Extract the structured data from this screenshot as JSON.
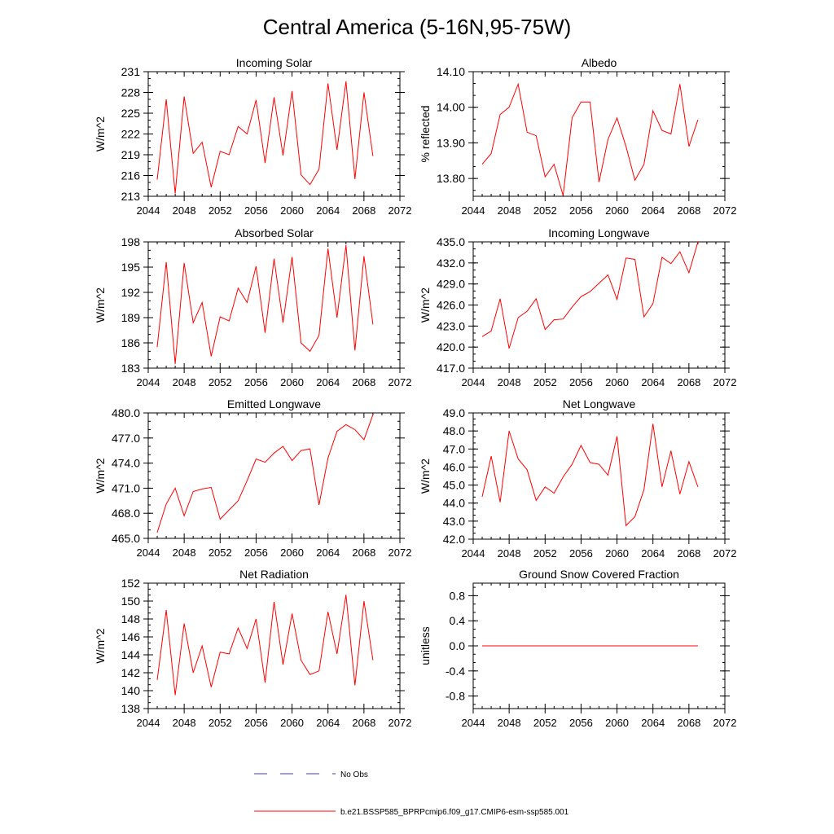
{
  "figure_title": "Central America (5-16N,95-75W)",
  "legend": {
    "obs_label": "No Obs",
    "model_label": "b.e21.BSSP585_BPRPcmip6.f09_g17.CMIP6-esm-ssp585.001",
    "obs_color": "#3b3bd0",
    "model_color": "#ff0000"
  },
  "chart_data": [
    {
      "type": "line",
      "title": "Incoming Solar",
      "ylabel": "W/m^2",
      "xlim": [
        2044,
        2072
      ],
      "ylim": [
        213,
        231
      ],
      "xticks": [
        "2044",
        "2048",
        "2052",
        "2056",
        "2060",
        "2064",
        "2068",
        "2072"
      ],
      "yticks": [
        "213",
        "216",
        "219",
        "222",
        "225",
        "228",
        "231"
      ],
      "series": [
        {
          "x": [
            2045,
            2046,
            2047,
            2048,
            2049,
            2050,
            2051,
            2052,
            2053,
            2054,
            2055,
            2056,
            2057,
            2058,
            2059,
            2060,
            2061,
            2062,
            2063,
            2064,
            2065,
            2066,
            2067,
            2068,
            2069
          ],
          "y": [
            215.4,
            227.0,
            213.4,
            227.4,
            219.2,
            220.8,
            214.3,
            219.5,
            219.0,
            223.1,
            222.0,
            226.9,
            217.8,
            227.3,
            218.9,
            228.2,
            216.1,
            214.7,
            216.9,
            229.3,
            219.7,
            229.6,
            215.5,
            228.0,
            218.8
          ]
        }
      ]
    },
    {
      "type": "line",
      "title": "Albedo",
      "ylabel": "% reflected",
      "xlim": [
        2044,
        2072
      ],
      "ylim": [
        13.75,
        14.1
      ],
      "xticks": [
        "2044",
        "2048",
        "2052",
        "2056",
        "2060",
        "2064",
        "2068",
        "2072"
      ],
      "yticks": [
        "13.80",
        "13.90",
        "14.00",
        "14.10"
      ],
      "series": [
        {
          "x": [
            2045,
            2046,
            2047,
            2048,
            2049,
            2050,
            2051,
            2052,
            2053,
            2054,
            2055,
            2056,
            2057,
            2058,
            2059,
            2060,
            2061,
            2062,
            2063,
            2064,
            2065,
            2066,
            2067,
            2068,
            2069
          ],
          "y": [
            13.84,
            13.87,
            13.98,
            14.0,
            14.065,
            13.93,
            13.92,
            13.805,
            13.84,
            13.752,
            13.97,
            14.015,
            14.015,
            13.79,
            13.91,
            13.97,
            13.89,
            13.795,
            13.84,
            13.99,
            13.935,
            13.925,
            14.065,
            13.89,
            13.965
          ]
        }
      ]
    },
    {
      "type": "line",
      "title": "Absorbed Solar",
      "ylabel": "W/m^2",
      "xlim": [
        2044,
        2072
      ],
      "ylim": [
        183,
        198
      ],
      "xticks": [
        "2044",
        "2048",
        "2052",
        "2056",
        "2060",
        "2064",
        "2068",
        "2072"
      ],
      "yticks": [
        "183",
        "186",
        "189",
        "192",
        "195",
        "198"
      ],
      "series": [
        {
          "x": [
            2045,
            2046,
            2047,
            2048,
            2049,
            2050,
            2051,
            2052,
            2053,
            2054,
            2055,
            2056,
            2057,
            2058,
            2059,
            2060,
            2061,
            2062,
            2063,
            2064,
            2065,
            2066,
            2067,
            2068,
            2069
          ],
          "y": [
            185.5,
            195.6,
            183.5,
            195.5,
            188.4,
            190.8,
            184.4,
            189.1,
            188.6,
            192.5,
            190.8,
            195.1,
            187.2,
            196.0,
            188.4,
            196.2,
            186.0,
            185.0,
            186.9,
            197.2,
            189.0,
            197.6,
            185.1,
            196.3,
            188.2
          ]
        }
      ]
    },
    {
      "type": "line",
      "title": "Incoming Longwave",
      "ylabel": "W/m^2",
      "xlim": [
        2044,
        2072
      ],
      "ylim": [
        417,
        435
      ],
      "xticks": [
        "2044",
        "2048",
        "2052",
        "2056",
        "2060",
        "2064",
        "2068",
        "2072"
      ],
      "yticks": [
        "417.0",
        "420.0",
        "423.0",
        "426.0",
        "429.0",
        "432.0",
        "435.0"
      ],
      "series": [
        {
          "x": [
            2045,
            2046,
            2047,
            2048,
            2049,
            2050,
            2051,
            2052,
            2053,
            2054,
            2055,
            2056,
            2057,
            2058,
            2059,
            2060,
            2061,
            2062,
            2063,
            2064,
            2065,
            2066,
            2067,
            2068,
            2069
          ],
          "y": [
            421.5,
            422.3,
            426.9,
            419.8,
            424.2,
            425.1,
            426.9,
            422.5,
            423.9,
            424.0,
            425.7,
            427.2,
            427.9,
            429.1,
            430.3,
            426.8,
            432.7,
            432.5,
            424.3,
            426.2,
            432.8,
            431.9,
            433.6,
            430.6,
            435.0
          ]
        }
      ]
    },
    {
      "type": "line",
      "title": "Emitted Longwave",
      "ylabel": "W/m^2",
      "xlim": [
        2044,
        2072
      ],
      "ylim": [
        465,
        480
      ],
      "xticks": [
        "2044",
        "2048",
        "2052",
        "2056",
        "2060",
        "2064",
        "2068",
        "2072"
      ],
      "yticks": [
        "465.0",
        "468.0",
        "471.0",
        "474.0",
        "477.0",
        "480.0"
      ],
      "series": [
        {
          "x": [
            2045,
            2046,
            2047,
            2048,
            2049,
            2050,
            2051,
            2052,
            2053,
            2054,
            2055,
            2056,
            2057,
            2058,
            2059,
            2060,
            2061,
            2062,
            2063,
            2064,
            2065,
            2066,
            2067,
            2068,
            2069
          ],
          "y": [
            465.7,
            469.1,
            471.0,
            467.7,
            470.6,
            470.9,
            471.1,
            467.3,
            468.4,
            469.5,
            471.9,
            474.5,
            474.1,
            475.2,
            476.0,
            474.3,
            475.5,
            475.7,
            469.0,
            474.6,
            477.8,
            478.6,
            478.0,
            476.8,
            479.8
          ]
        }
      ]
    },
    {
      "type": "line",
      "title": "Net Longwave",
      "ylabel": "W/m^2",
      "xlim": [
        2044,
        2072
      ],
      "ylim": [
        42,
        49
      ],
      "xticks": [
        "2044",
        "2048",
        "2052",
        "2056",
        "2060",
        "2064",
        "2068",
        "2072"
      ],
      "yticks": [
        "42.0",
        "43.0",
        "44.0",
        "45.0",
        "46.0",
        "47.0",
        "48.0",
        "49.0"
      ],
      "series": [
        {
          "x": [
            2045,
            2046,
            2047,
            2048,
            2049,
            2050,
            2051,
            2052,
            2053,
            2054,
            2055,
            2056,
            2057,
            2058,
            2059,
            2060,
            2061,
            2062,
            2063,
            2064,
            2065,
            2066,
            2067,
            2068,
            2069
          ],
          "y": [
            44.35,
            46.6,
            44.05,
            48.0,
            46.45,
            45.85,
            44.15,
            44.9,
            44.55,
            45.45,
            46.15,
            47.2,
            46.25,
            46.15,
            45.55,
            47.7,
            42.75,
            43.25,
            44.75,
            48.4,
            44.9,
            46.9,
            44.5,
            46.3,
            44.9
          ]
        }
      ]
    },
    {
      "type": "line",
      "title": "Net Radiation",
      "ylabel": "W/m^2",
      "xlim": [
        2044,
        2072
      ],
      "ylim": [
        138,
        152
      ],
      "xticks": [
        "2044",
        "2048",
        "2052",
        "2056",
        "2060",
        "2064",
        "2068",
        "2072"
      ],
      "yticks": [
        "138",
        "140",
        "142",
        "144",
        "146",
        "148",
        "150",
        "152"
      ],
      "series": [
        {
          "x": [
            2045,
            2046,
            2047,
            2048,
            2049,
            2050,
            2051,
            2052,
            2053,
            2054,
            2055,
            2056,
            2057,
            2058,
            2059,
            2060,
            2061,
            2062,
            2063,
            2064,
            2065,
            2066,
            2067,
            2068,
            2069
          ],
          "y": [
            141.2,
            149.0,
            139.5,
            147.5,
            142.0,
            145.0,
            140.4,
            144.3,
            144.1,
            147.0,
            144.7,
            148.0,
            140.9,
            149.9,
            142.9,
            148.6,
            143.4,
            141.8,
            142.2,
            148.8,
            144.1,
            150.7,
            140.6,
            150.0,
            143.4
          ]
        }
      ]
    },
    {
      "type": "line",
      "title": "Ground Snow Covered Fraction",
      "ylabel": "unitless",
      "xlim": [
        2044,
        2072
      ],
      "ylim": [
        -1.0,
        1.0
      ],
      "xticks": [
        "2044",
        "2048",
        "2052",
        "2056",
        "2060",
        "2064",
        "2068",
        "2072"
      ],
      "yticks": [
        "-0.8",
        "-0.4",
        "0.0",
        "0.4",
        "0.8"
      ],
      "ytick_values": [
        -0.8,
        -0.4,
        0.0,
        0.4,
        0.8
      ],
      "series": [
        {
          "x": [
            2045,
            2069
          ],
          "y": [
            0.0,
            0.0
          ]
        }
      ]
    }
  ]
}
